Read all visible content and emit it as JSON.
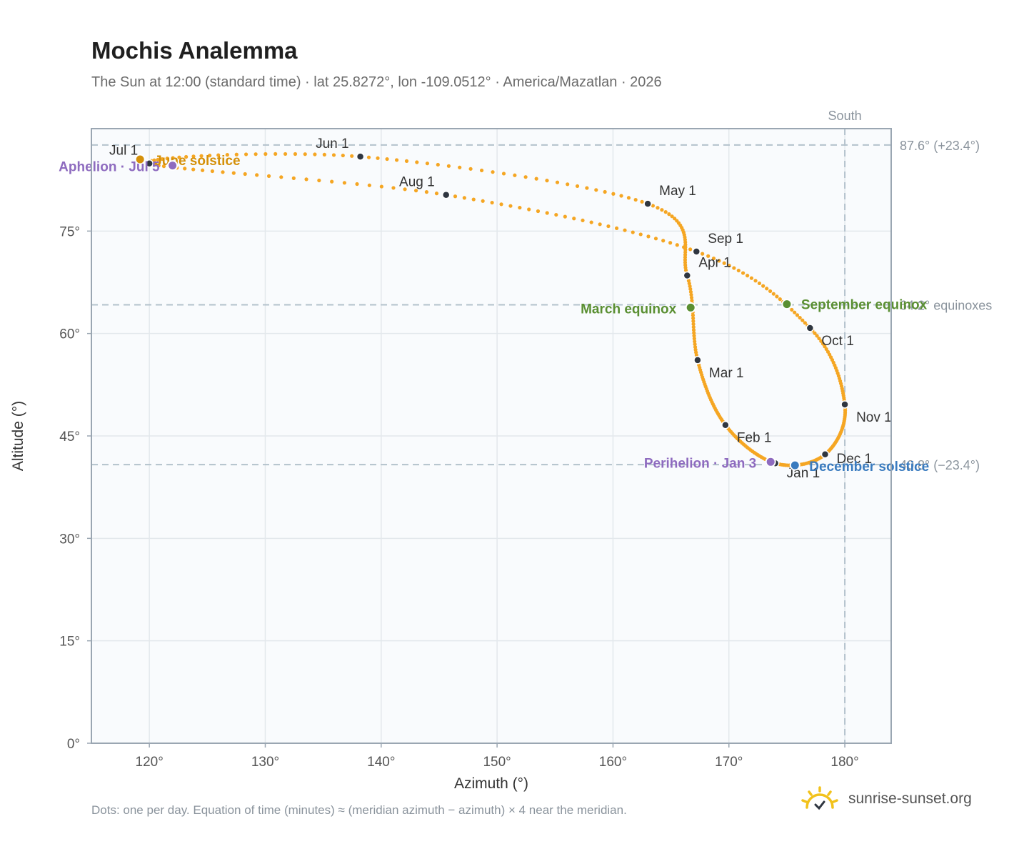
{
  "title": "Mochis Analemma",
  "subtitle": "The Sun at 12:00 (standard time) · lat 25.8272°, lon -109.0512° · America/Mazatlan · 2026",
  "footnote": "Dots: one per day. Equation of time (minutes) ≈ (meridian azimuth − azimuth) × 4 near the meridian.",
  "brand": "sunrise-sunset.org",
  "colors": {
    "curve": "#f5a623",
    "month_dot": "#2f3640",
    "june_solstice": "#d4900a",
    "december_solstice": "#3a7bbf",
    "equinox": "#5a8f32",
    "apsis": "#8e6bbf",
    "reference_line": "#b4c2cc",
    "plot_bg": "#f9fbfd",
    "brand_sun": "#f2c21b"
  },
  "icons": {
    "brand": "sun-check-icon"
  },
  "chart_data": {
    "type": "scatter",
    "xlabel": "Azimuth (°)",
    "ylabel": "Altitude (°)",
    "xlim": [
      115,
      184
    ],
    "ylim": [
      0,
      90
    ],
    "x_ticks": [
      120,
      130,
      140,
      150,
      160,
      170,
      180
    ],
    "y_ticks": [
      0,
      15,
      30,
      45,
      60,
      75
    ],
    "x_tick_labels": [
      "120°",
      "130°",
      "140°",
      "150°",
      "160°",
      "170°",
      "180°"
    ],
    "y_tick_labels": [
      "0°",
      "15°",
      "30°",
      "45°",
      "60°",
      "75°"
    ],
    "grid": true,
    "reference_lines": [
      {
        "axis": "y",
        "value": 87.6,
        "label": "87.6° (+23.4°)"
      },
      {
        "axis": "y",
        "value": 64.2,
        "label": "64.2° equinoxes"
      },
      {
        "axis": "y",
        "value": 40.8,
        "label": "40.8° (−23.4°)"
      },
      {
        "axis": "x",
        "value": 180,
        "label": "South"
      }
    ],
    "month_markers": [
      {
        "label": "Jan 1",
        "azimuth": 174.0,
        "altitude": 41.0
      },
      {
        "label": "Feb 1",
        "azimuth": 169.7,
        "altitude": 46.6
      },
      {
        "label": "Mar 1",
        "azimuth": 167.3,
        "altitude": 56.1
      },
      {
        "label": "Apr 1",
        "azimuth": 166.4,
        "altitude": 68.5
      },
      {
        "label": "May 1",
        "azimuth": 163.0,
        "altitude": 79.0
      },
      {
        "label": "Jun 1",
        "azimuth": 138.2,
        "altitude": 85.9
      },
      {
        "label": "Jul 1",
        "azimuth": 120.0,
        "altitude": 84.9
      },
      {
        "label": "Aug 1",
        "azimuth": 145.6,
        "altitude": 80.3
      },
      {
        "label": "Sep 1",
        "azimuth": 167.2,
        "altitude": 72.0
      },
      {
        "label": "Oct 1",
        "azimuth": 177.0,
        "altitude": 60.8
      },
      {
        "label": "Nov 1",
        "azimuth": 180.0,
        "altitude": 49.6
      },
      {
        "label": "Dec 1",
        "azimuth": 178.3,
        "altitude": 42.3
      }
    ],
    "events": [
      {
        "label": "June solstice",
        "azimuth": 119.2,
        "altitude": 85.5,
        "color": "#d4900a"
      },
      {
        "label": "Aphelion · Jul 5",
        "azimuth": 122.0,
        "altitude": 84.6,
        "color": "#8e6bbf"
      },
      {
        "label": "March equinox",
        "azimuth": 166.7,
        "altitude": 63.8,
        "color": "#5a8f32"
      },
      {
        "label": "September equinox",
        "azimuth": 175.0,
        "altitude": 64.3,
        "color": "#5a8f32"
      },
      {
        "label": "Perihelion · Jan 3",
        "azimuth": 173.6,
        "altitude": 41.2,
        "color": "#8e6bbf"
      },
      {
        "label": "December solstice",
        "azimuth": 175.7,
        "altitude": 40.7,
        "color": "#3a7bbf"
      }
    ]
  }
}
